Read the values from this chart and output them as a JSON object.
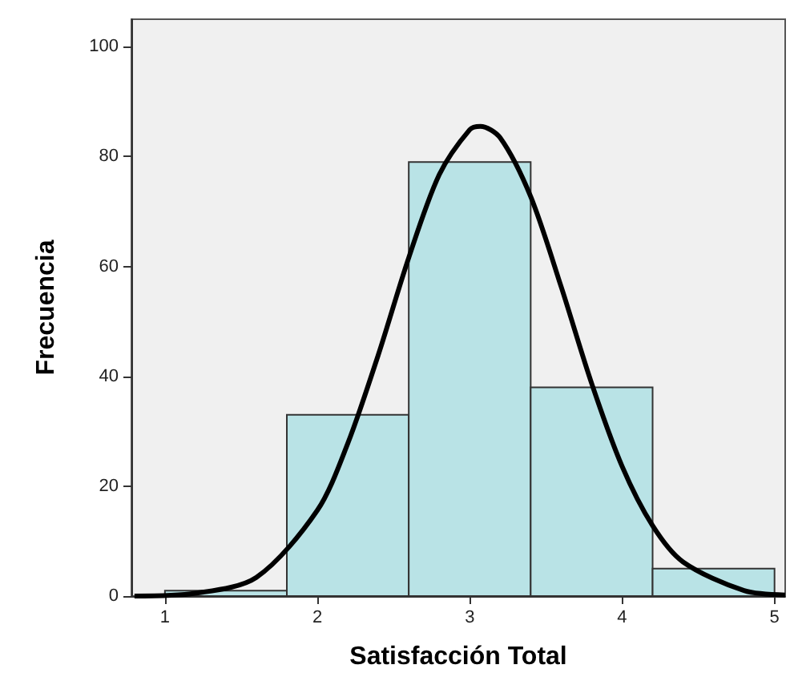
{
  "chart_data": {
    "type": "histogram",
    "xlabel": "Satisfacción Total",
    "ylabel": "Frecuencia",
    "bins": [
      1.0,
      1.8,
      2.6,
      3.4,
      4.2,
      5.0
    ],
    "values": [
      1,
      33,
      79,
      38,
      5
    ],
    "color": "#b9e3e6",
    "series": [
      {
        "type": "line",
        "color": "#000000",
        "x": [
          0.8,
          1.2,
          1.6,
          2.0,
          2.2,
          2.4,
          2.6,
          2.8,
          3.0,
          3.07,
          3.2,
          3.4,
          3.6,
          3.8,
          4.0,
          4.2,
          4.4,
          4.8,
          5.07
        ],
        "values": [
          0,
          0.5,
          3.4,
          15.6,
          27.8,
          43.9,
          61.6,
          76.7,
          84.9,
          85.5,
          83.4,
          72.7,
          56.3,
          38.7,
          23.6,
          12.8,
          6.2,
          1,
          0.2
        ]
      }
    ],
    "xlim": [
      0.78,
      5.07
    ],
    "xticks": [
      1,
      2,
      3,
      4,
      5
    ],
    "ylim": [
      0,
      105
    ],
    "yticks": [
      0,
      20,
      40,
      60,
      80,
      100
    ],
    "grid": false,
    "marker": "none",
    "line_style": "solid"
  }
}
